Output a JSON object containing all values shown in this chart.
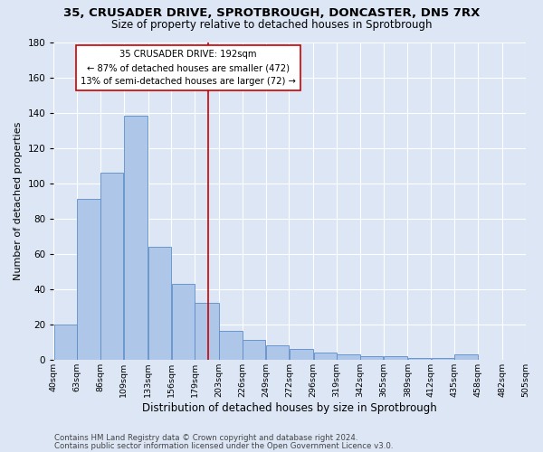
{
  "title_line1": "35, CRUSADER DRIVE, SPROTBROUGH, DONCASTER, DN5 7RX",
  "title_line2": "Size of property relative to detached houses in Sprotbrough",
  "xlabel": "Distribution of detached houses by size in Sprotbrough",
  "ylabel": "Number of detached properties",
  "footer_line1": "Contains HM Land Registry data © Crown copyright and database right 2024.",
  "footer_line2": "Contains public sector information licensed under the Open Government Licence v3.0.",
  "bin_labels": [
    "40sqm",
    "63sqm",
    "86sqm",
    "109sqm",
    "133sqm",
    "156sqm",
    "179sqm",
    "203sqm",
    "226sqm",
    "249sqm",
    "272sqm",
    "296sqm",
    "319sqm",
    "342sqm",
    "365sqm",
    "389sqm",
    "412sqm",
    "435sqm",
    "458sqm",
    "482sqm",
    "505sqm"
  ],
  "bar_heights": [
    20,
    91,
    106,
    138,
    64,
    43,
    32,
    16,
    11,
    8,
    6,
    4,
    3,
    2,
    2,
    1,
    1,
    3,
    0,
    0
  ],
  "bin_edges": [
    40,
    63,
    86,
    109,
    133,
    156,
    179,
    203,
    226,
    249,
    272,
    296,
    319,
    342,
    365,
    389,
    412,
    435,
    458,
    482,
    505
  ],
  "bar_color": "#aec6e8",
  "bar_edge_color": "#5b8cc8",
  "property_size": 192,
  "vline_color": "#cc0000",
  "annotation_text_line1": "35 CRUSADER DRIVE: 192sqm",
  "annotation_text_line2": "← 87% of detached houses are smaller (472)",
  "annotation_text_line3": "13% of semi-detached houses are larger (72) →",
  "annotation_box_facecolor": "#ffffff",
  "annotation_box_edgecolor": "#cc0000",
  "ylim": [
    0,
    180
  ],
  "yticks": [
    0,
    20,
    40,
    60,
    80,
    100,
    120,
    140,
    160,
    180
  ],
  "bg_color": "#dce6f5",
  "plot_bg_color": "#dce6f5",
  "grid_color": "#ffffff",
  "title_fontsize": 9.5,
  "subtitle_fontsize": 8.5,
  "ylabel_fontsize": 8,
  "xlabel_fontsize": 8.5,
  "footer_fontsize": 6.2
}
